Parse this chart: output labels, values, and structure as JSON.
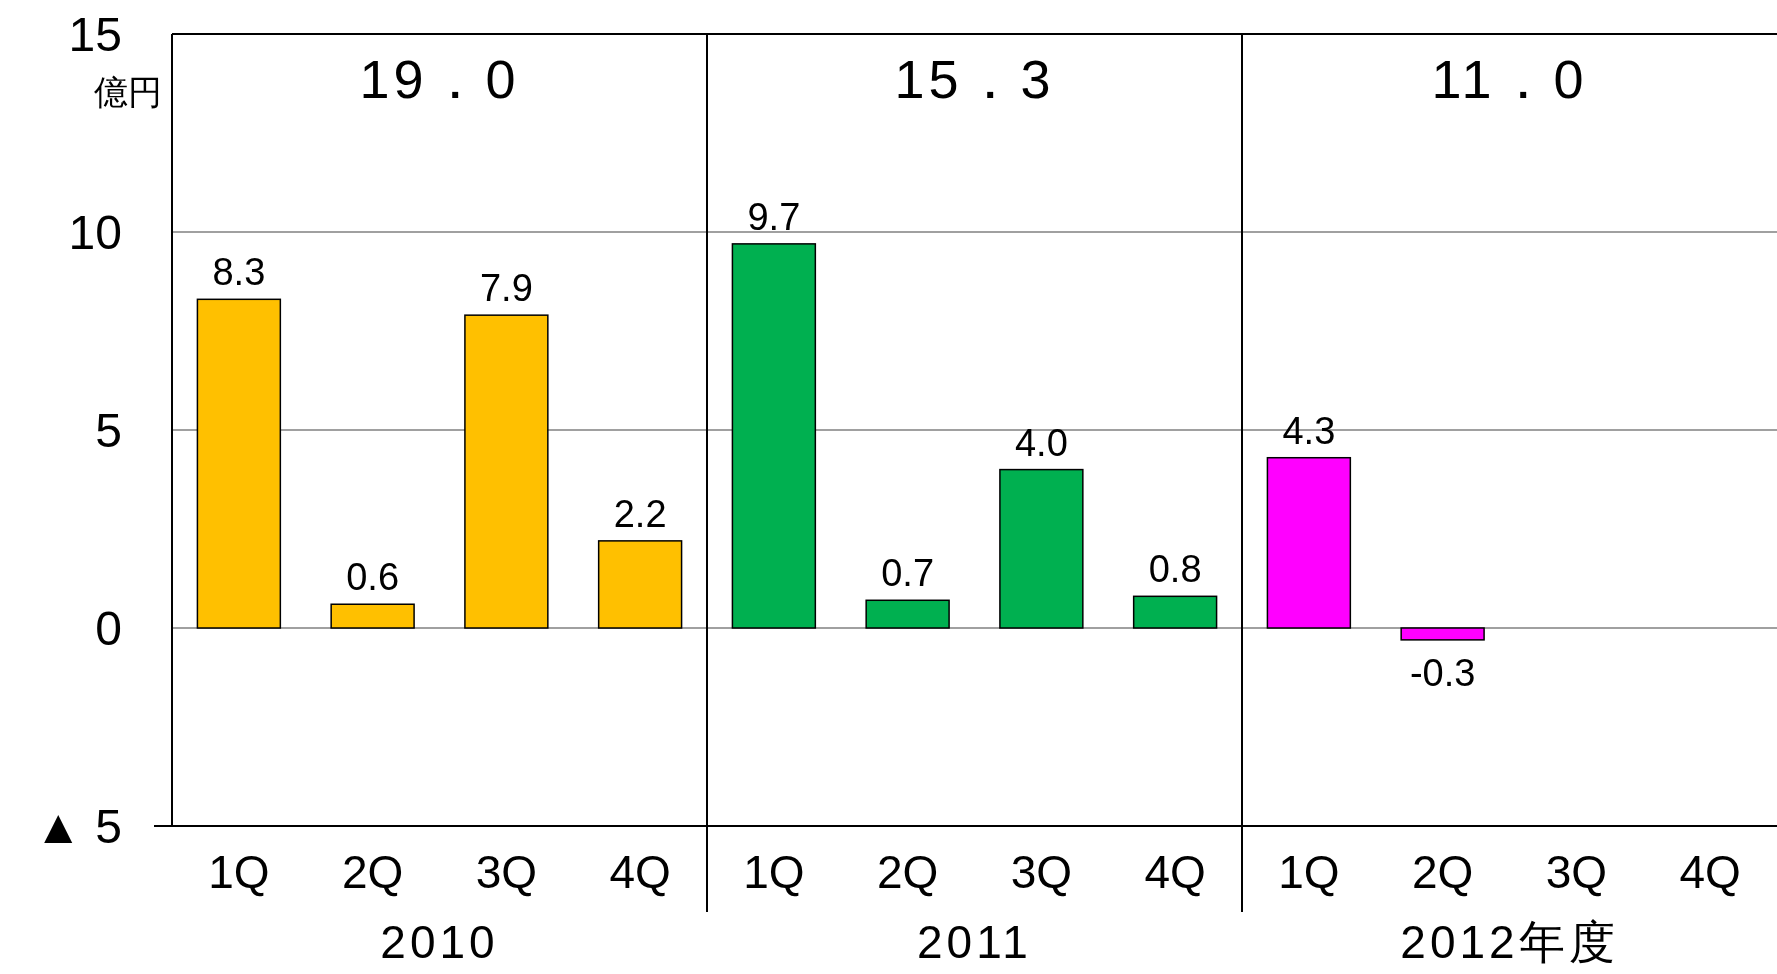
{
  "chart_data": {
    "type": "bar",
    "categories": [
      "1Q",
      "2Q",
      "3Q",
      "4Q",
      "1Q",
      "2Q",
      "3Q",
      "4Q",
      "1Q",
      "2Q",
      "3Q",
      "4Q"
    ],
    "values": [
      8.3,
      0.6,
      7.9,
      2.2,
      9.7,
      0.7,
      4.0,
      0.8,
      4.3,
      -0.3,
      null,
      null
    ],
    "value_labels": [
      "8.3",
      "0.6",
      "7.9",
      "2.2",
      "9.7",
      "0.7",
      "4.0",
      "0.8",
      "4.3",
      "-0.3",
      null,
      null
    ],
    "colors": [
      "#ffc000",
      "#ffc000",
      "#ffc000",
      "#ffc000",
      "#00b050",
      "#00b050",
      "#00b050",
      "#00b050",
      "#ff00ff",
      "#ff00ff",
      null,
      null
    ],
    "ylabel": "億円",
    "ylim": [
      -5,
      15
    ],
    "yticks": [
      {
        "value": -5,
        "label": "▲ 5"
      },
      0,
      5,
      10,
      15
    ],
    "grid": "y",
    "annotations": [
      "19．0",
      "15．3",
      "11．0",
      "2010",
      "2011",
      "2012年度"
    ]
  }
}
